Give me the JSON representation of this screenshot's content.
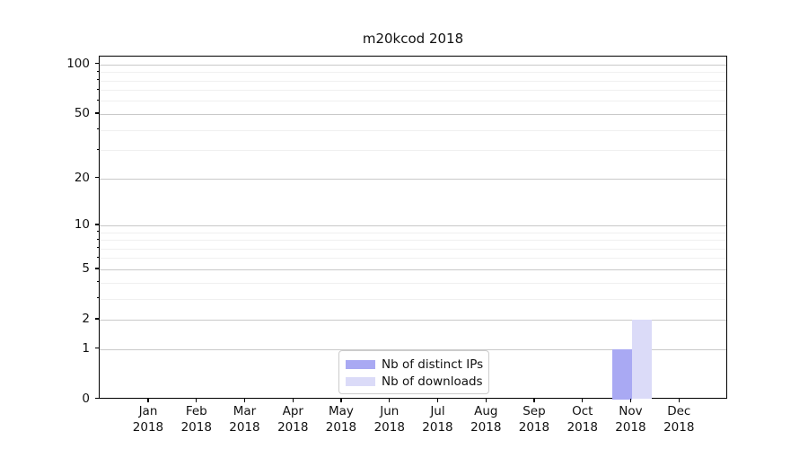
{
  "title": "m20kcod 2018",
  "chart_data": {
    "type": "bar",
    "title": "m20kcod 2018",
    "categories": [
      "Jan 2018",
      "Feb 2018",
      "Mar 2018",
      "Apr 2018",
      "May 2018",
      "Jun 2018",
      "Jul 2018",
      "Aug 2018",
      "Sep 2018",
      "Oct 2018",
      "Nov 2018",
      "Dec 2018"
    ],
    "x_tick_months": [
      "Jan",
      "Feb",
      "Mar",
      "Apr",
      "May",
      "Jun",
      "Jul",
      "Aug",
      "Sep",
      "Oct",
      "Nov",
      "Dec"
    ],
    "x_tick_year": "2018",
    "series": [
      {
        "name": "Nb of distinct IPs",
        "color": "#a9a9f3",
        "values": [
          0,
          0,
          0,
          0,
          0,
          0,
          0,
          0,
          0,
          0,
          1,
          0
        ]
      },
      {
        "name": "Nb of downloads",
        "color": "#dbdbf8",
        "values": [
          0,
          0,
          0,
          0,
          0,
          0,
          0,
          0,
          0,
          0,
          2,
          0
        ]
      }
    ],
    "xlabel": "",
    "ylabel": "",
    "y_scale": "log1p",
    "ylim": [
      0,
      111
    ],
    "y_major_ticks": [
      0,
      1,
      2,
      5,
      10,
      20,
      50,
      100
    ],
    "y_minor_gridlines": [
      3,
      4,
      6,
      7,
      8,
      9,
      30,
      40,
      60,
      70,
      80,
      90
    ],
    "grid": true,
    "legend_position": "lower center"
  },
  "colors": {
    "background": "#ffffff",
    "spine": "#000000",
    "grid_major": "#c9c9c9",
    "grid_minor": "#f0f0f0",
    "text": "#111111",
    "legend_border": "#cccccc",
    "bar_distinct_ips": "#a9a9f3",
    "bar_downloads": "#dbdbf8"
  }
}
